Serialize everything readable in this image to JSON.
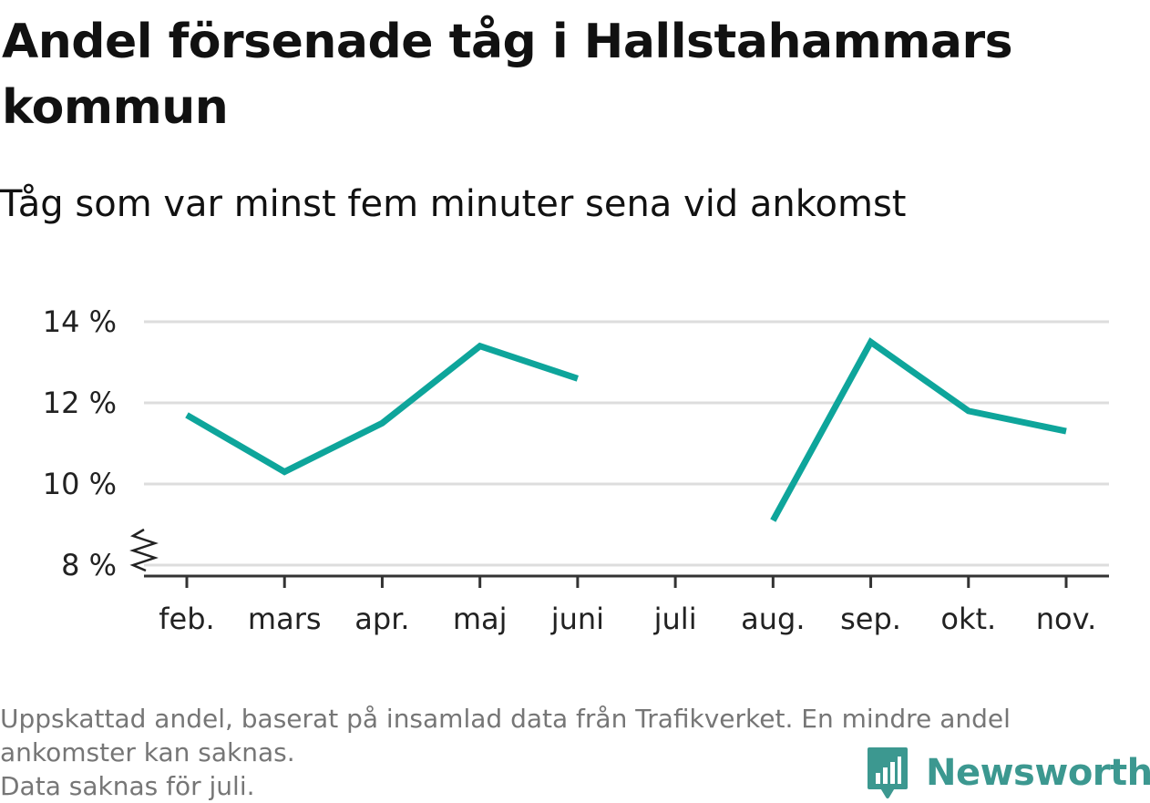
{
  "title": "Andel försenade tåg i Hallstahammars kommun",
  "subtitle": "Tåg som var minst fem minuter sena vid ankomst",
  "footnote": {
    "line1": "Uppskattad andel, baserat på insamlad data från Trafikverket. En mindre andel",
    "line2": "ankomster kan saknas.",
    "line3": "Data saknas för juli."
  },
  "logo": {
    "text": "Newsworthy",
    "icon": "newsworthy-logo-icon",
    "color": "#3c9890"
  },
  "chart_data": {
    "type": "line",
    "categories": [
      "feb.",
      "mars",
      "apr.",
      "maj",
      "juni",
      "juli",
      "aug.",
      "sep.",
      "okt.",
      "nov."
    ],
    "series": [
      {
        "values": [
          11.7,
          10.3,
          11.5,
          13.4,
          12.6,
          null,
          9.1,
          13.5,
          11.8,
          11.3
        ],
        "color": "#0ea59b"
      }
    ],
    "y_ticks": [
      8,
      10,
      12,
      14
    ],
    "y_tick_labels": [
      "8 %",
      "10 %",
      "12 %",
      "14 %"
    ],
    "ylim": [
      8,
      14
    ],
    "y_axis_break": true,
    "grid": true,
    "gridline_color": "#dddddd",
    "xlabel": "",
    "ylabel": ""
  }
}
